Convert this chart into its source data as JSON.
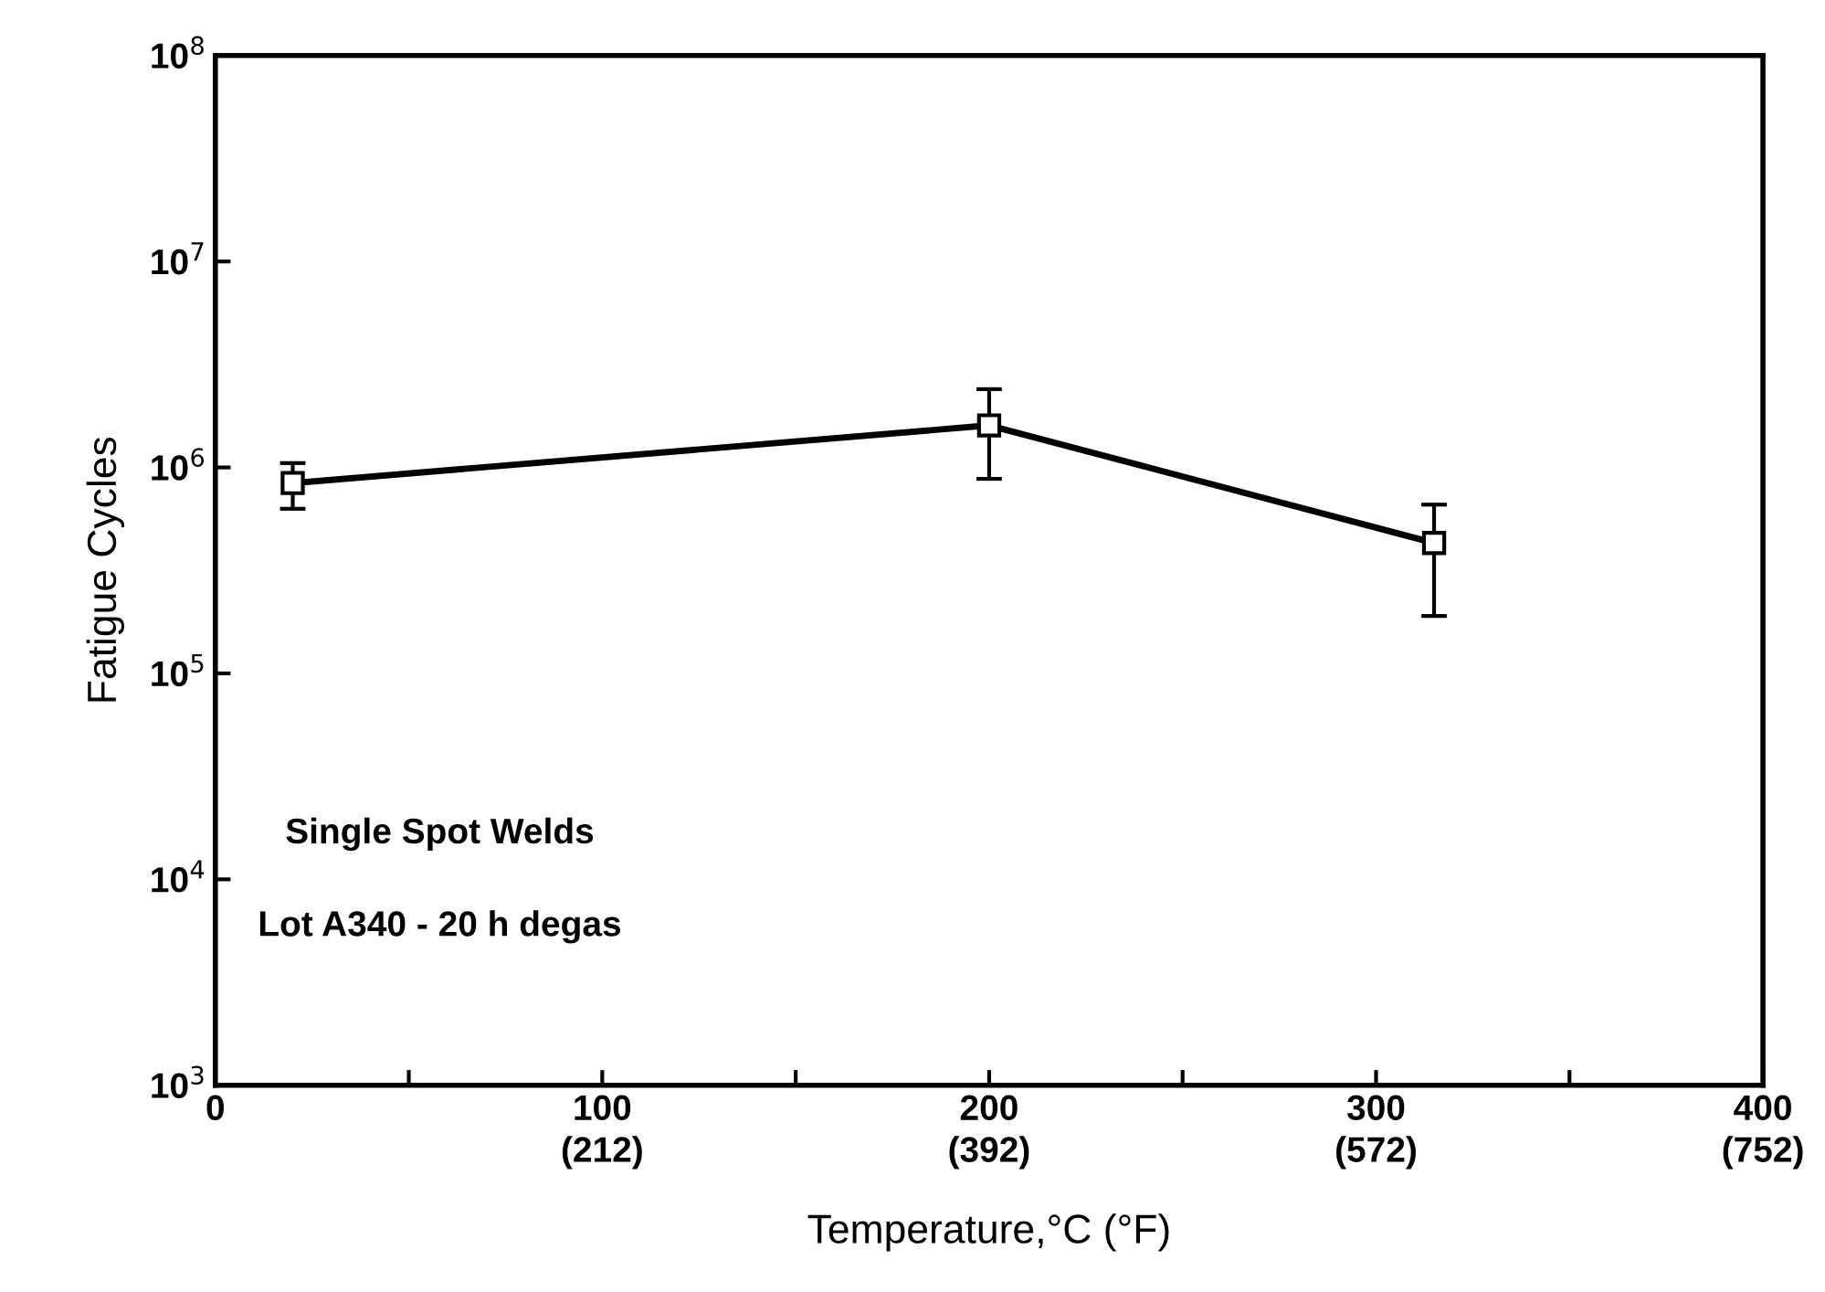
{
  "chart_data": {
    "type": "line",
    "xlabel": "Temperature,°C (°F)",
    "ylabel": "Fatigue Cycles",
    "x": [
      20,
      200,
      315
    ],
    "series": [
      {
        "color": "#000000",
        "values": [
          840000,
          1600000,
          430000
        ],
        "errors": [
          [
            630000,
            1050000
          ],
          [
            880000,
            2400000
          ],
          [
            190000,
            660000
          ]
        ]
      }
    ],
    "log": "y",
    "marker": "square",
    "line_style": "solid",
    "grid": false,
    "legend": false,
    "xlim": [
      0,
      400
    ],
    "xticks": [
      0,
      {
        "value": 50,
        "label": null
      },
      100,
      {
        "value": 150,
        "label": null
      },
      200,
      {
        "value": 250,
        "label": null
      },
      300,
      {
        "value": 350,
        "label": null
      },
      400
    ],
    "x2lim": [
      32,
      752
    ],
    "x2ticks": [
      {
        "value": 212,
        "label": "(212)"
      },
      {
        "value": 392,
        "label": "(392)"
      },
      {
        "value": 572,
        "label": "(572)"
      },
      {
        "value": 752,
        "label": "(752)"
      }
    ],
    "ylim": [
      1000,
      100000000
    ],
    "yticks": [
      {
        "value": 1000,
        "label": "10$^{3}$"
      },
      {
        "value": 10000,
        "label": "10$^{4}$"
      },
      {
        "value": 100000,
        "label": "10$^{5}$"
      },
      {
        "value": 1000000,
        "label": "10$^{6}$"
      },
      {
        "value": 10000000,
        "label": "10$^{7}$"
      },
      {
        "value": 100000000,
        "label": "10$^{8}$"
      }
    ],
    "annotations": [
      "Single Spot Welds",
      "Lot A340 - 20 h degas"
    ]
  }
}
